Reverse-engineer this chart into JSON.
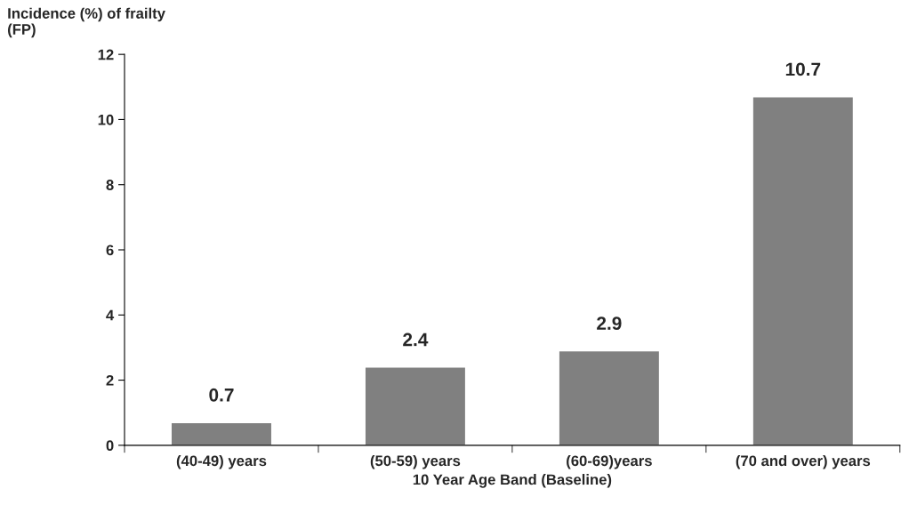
{
  "chart_data": {
    "type": "bar",
    "ylabel": "Incidence (%) of frailty\n(FP)",
    "xlabel": "10 Year Age Band (Baseline)",
    "categories": [
      "(40-49) years",
      "(50-59) years",
      "(60-69)years",
      "(70 and over) years"
    ],
    "values": [
      0.7,
      2.4,
      2.9,
      10.7
    ],
    "color": "#808080",
    "ylim": [
      0,
      12
    ],
    "yticks": [
      0,
      2,
      4,
      6,
      8,
      10,
      12
    ],
    "grid": false,
    "data_labels": true
  }
}
